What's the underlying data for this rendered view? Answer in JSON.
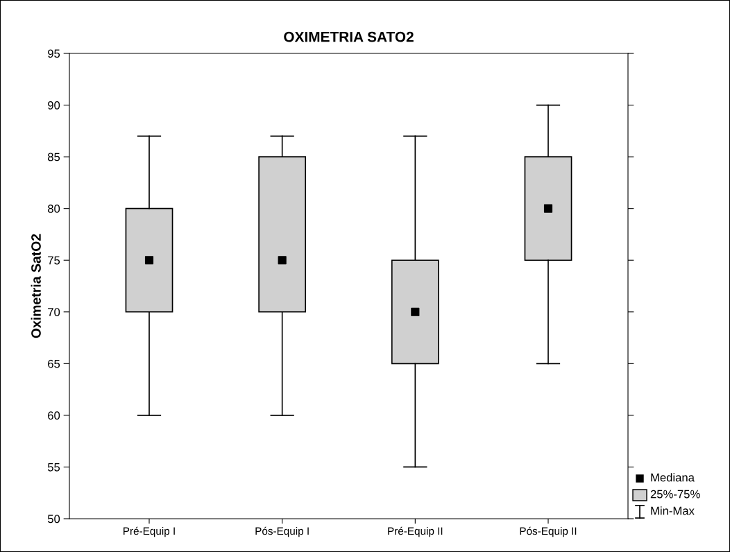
{
  "chart_data": {
    "type": "box",
    "title": "OXIMETRIA SATO2",
    "ylabel": "Oximetria SatO2",
    "categories": [
      "Pré-Equip I",
      "Pós-Equip I",
      "Pré-Equip II",
      "Pós-Equip II"
    ],
    "color": "#d0d0d0",
    "boxes": [
      {
        "low": 60,
        "q1": 70,
        "median": 75,
        "q3": 80,
        "high": 87
      },
      {
        "low": 60,
        "q1": 70,
        "median": 75,
        "q3": 85,
        "high": 87
      },
      {
        "low": 55,
        "q1": 65,
        "median": 70,
        "q3": 75,
        "high": 87
      },
      {
        "low": 65,
        "q1": 75,
        "median": 80,
        "q3": 85,
        "high": 90
      }
    ],
    "ylim": [
      50,
      95
    ],
    "yticks": [
      50,
      55,
      60,
      65,
      70,
      75,
      80,
      85,
      90,
      95
    ],
    "grid": false,
    "marker": "square",
    "annotations": [
      "Mediana",
      "25%-75%",
      "Min-Max"
    ]
  }
}
